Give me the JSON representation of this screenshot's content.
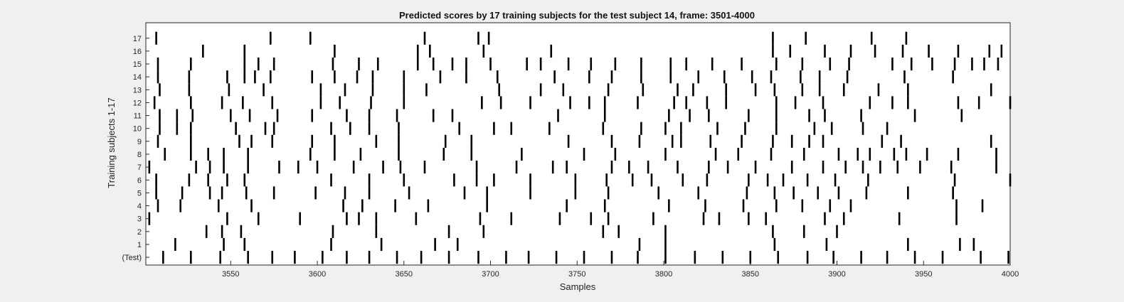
{
  "chart_data": {
    "type": "raster",
    "title": "Predicted scores by 17 training subjects for the test subject 14, frame: 3501-4000",
    "xlabel": "Samples",
    "ylabel": "Training subjects 1-17",
    "xlim": [
      3501,
      4000
    ],
    "x_ticks": [
      3550,
      3600,
      3650,
      3700,
      3750,
      3800,
      3850,
      3900,
      3950,
      4000
    ],
    "x_tick_labels": [
      "3550",
      "3600",
      "3650",
      "3700",
      "3750",
      "3800",
      "3850",
      "3900",
      "3950",
      "4000"
    ],
    "rows": [
      "(Test)",
      "1",
      "2",
      "3",
      "4",
      "5",
      "6",
      "7",
      "8",
      "9",
      "10",
      "11",
      "12",
      "13",
      "14",
      "15",
      "16",
      "17"
    ],
    "grid": false,
    "legend": "none",
    "colors": {
      "background": "#ffffff",
      "event": "#000000",
      "figure": "#f0f0f0"
    },
    "events": [
      [
        3511,
        3527,
        3544,
        3560,
        3574,
        3587,
        3603,
        3617,
        3630,
        3646,
        3660,
        3676,
        3693,
        3709,
        3722,
        3738,
        3754,
        3770,
        3785,
        3801,
        3818,
        3834,
        3850,
        3866,
        3883,
        3898,
        3914,
        3929,
        3945,
        3961,
        3983,
        3999
      ],
      [
        3518,
        3546,
        3558,
        3608,
        3637,
        3668,
        3681,
        3786,
        3801,
        3864,
        3894,
        3941,
        3971,
        3979
      ],
      [
        3536,
        3545,
        3556,
        3609,
        3634,
        3676,
        3696,
        3765,
        3774,
        3801,
        3863,
        3881,
        3900
      ],
      [
        3503,
        3548,
        3566,
        3590,
        3617,
        3624,
        3634,
        3657,
        3694,
        3712,
        3740,
        3758,
        3768,
        3794,
        3823,
        3832,
        3849,
        3859,
        3893,
        3904,
        3936,
        3969
      ],
      [
        3508,
        3521,
        3543,
        3562,
        3615,
        3626,
        3645,
        3664,
        3698,
        3744,
        3766,
        3803,
        3824,
        3846,
        3865,
        3880,
        3896,
        3908,
        3969,
        3984
      ],
      [
        3507,
        3522,
        3538,
        3545,
        3559,
        3575,
        3599,
        3616,
        3630,
        3653,
        3685,
        3698,
        3723,
        3749,
        3768,
        3797,
        3820,
        3848,
        3864,
        3875,
        3889,
        3901,
        3917,
        3941,
        3967
      ],
      [
        3507,
        3526,
        3537,
        3548,
        3558,
        3608,
        3630,
        3650,
        3679,
        3692,
        3702,
        3723,
        3749,
        3767,
        3782,
        3793,
        3811,
        3825,
        3849,
        3860,
        3869,
        3883,
        3899,
        3918,
        3968,
        4000
      ],
      [
        3503,
        3530,
        3538,
        3546,
        3560,
        3578,
        3589,
        3600,
        3621,
        3638,
        3648,
        3662,
        3692,
        3715,
        3736,
        3744,
        3770,
        3780,
        3791,
        3808,
        3826,
        3837,
        3853,
        3874,
        3892,
        3905,
        3915,
        3925,
        3935,
        3948,
        3966,
        3992
      ],
      [
        3512,
        3527,
        3537,
        3546,
        3560,
        3596,
        3610,
        3625,
        3647,
        3673,
        3689,
        3718,
        3754,
        3772,
        3801,
        3830,
        3843,
        3862,
        3881,
        3901,
        3912,
        3919,
        3933,
        3940,
        3952,
        3970,
        3992
      ],
      [
        3508,
        3527,
        3555,
        3562,
        3574,
        3597,
        3610,
        3634,
        3647,
        3674,
        3689,
        3745,
        3770,
        3786,
        3805,
        3810,
        3827,
        3845,
        3863,
        3874,
        3884,
        3892,
        3926,
        3937,
        3989
      ],
      [
        3509,
        3519,
        3527,
        3553,
        3570,
        3575,
        3608,
        3619,
        3630,
        3647,
        3682,
        3702,
        3712,
        3734,
        3765,
        3787,
        3801,
        3810,
        3831,
        3847,
        3865,
        3887,
        3897,
        3915,
        3929
      ],
      [
        3509,
        3519,
        3528,
        3550,
        3561,
        3577,
        3597,
        3617,
        3630,
        3646,
        3667,
        3678,
        3739,
        3766,
        3803,
        3815,
        3826,
        3849,
        3865,
        3884,
        3893,
        3914,
        3945,
        3972
      ],
      [
        3506,
        3527,
        3545,
        3557,
        3574,
        3602,
        3613,
        3631,
        3650,
        3695,
        3706,
        3723,
        3746,
        3757,
        3766,
        3785,
        3806,
        3813,
        3825,
        3836,
        3865,
        3876,
        3892,
        3919,
        3932,
        3941,
        3970,
        3982,
        4000
      ],
      [
        3509,
        3526,
        3549,
        3569,
        3602,
        3616,
        3632,
        3650,
        3663,
        3705,
        3729,
        3742,
        3768,
        3788,
        3808,
        3817,
        3836,
        3853,
        3864,
        3880,
        3890,
        3904,
        3924,
        3941,
        3989
      ],
      [
        3508,
        3526,
        3548,
        3558,
        3564,
        3573,
        3597,
        3610,
        3623,
        3632,
        3650,
        3671,
        3686,
        3704,
        3737,
        3757,
        3770,
        3787,
        3804,
        3820,
        3835,
        3851,
        3862,
        3879,
        3890,
        3906,
        3939,
        3967
      ],
      [
        3508,
        3527,
        3558,
        3566,
        3575,
        3609,
        3624,
        3635,
        3658,
        3667,
        3678,
        3686,
        3700,
        3721,
        3729,
        3745,
        3758,
        3772,
        3787,
        3804,
        3813,
        3828,
        3845,
        3865,
        3880,
        3896,
        3907,
        3932,
        3943,
        3955,
        3968,
        3978,
        3985,
        3993
      ],
      [
        3534,
        3558,
        3610,
        3658,
        3665,
        3696,
        3735,
        3863,
        3873,
        3893,
        3908,
        3922,
        3938,
        3953,
        3970,
        3988,
        3995
      ],
      [
        3507,
        3573,
        3596,
        3662,
        3693,
        3699,
        3863,
        3882,
        3920,
        3940
      ]
    ]
  }
}
